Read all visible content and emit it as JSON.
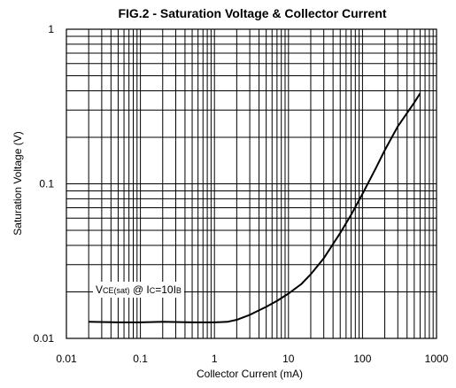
{
  "chart_data": {
    "type": "line",
    "title": "FIG.2 - Saturation Voltage & Collector Current",
    "xlabel": "Collector Current (mA)",
    "ylabel": "Saturation Voltage (V)",
    "x_scale": "log",
    "y_scale": "log",
    "xlim": [
      0.01,
      1000
    ],
    "ylim": [
      0.01,
      1
    ],
    "x_ticks": [
      "0.01",
      "0.1",
      "1",
      "10",
      "100",
      "1000"
    ],
    "y_ticks": [
      "0.01",
      "0.1",
      "1"
    ],
    "grid": true,
    "annotation": {
      "parts": [
        {
          "text": "V",
          "sub": false
        },
        {
          "text": "CE(sat)",
          "sub": true
        },
        {
          "text": " @ I",
          "sub": false
        },
        {
          "text": "C",
          "sub": true
        },
        {
          "text": "=10I",
          "sub": false
        },
        {
          "text": "B",
          "sub": true
        }
      ]
    },
    "series": [
      {
        "x": [
          0.02,
          0.05,
          0.1,
          0.2,
          0.5,
          1,
          1.5,
          2,
          3,
          5,
          7,
          10,
          15,
          20,
          30,
          50,
          70,
          100,
          150,
          200,
          300,
          500,
          600
        ],
        "y": [
          0.0128,
          0.0127,
          0.0127,
          0.0128,
          0.0127,
          0.0127,
          0.0128,
          0.0132,
          0.0142,
          0.016,
          0.0175,
          0.0195,
          0.0225,
          0.026,
          0.033,
          0.048,
          0.063,
          0.086,
          0.125,
          0.165,
          0.235,
          0.335,
          0.385
        ]
      }
    ]
  }
}
